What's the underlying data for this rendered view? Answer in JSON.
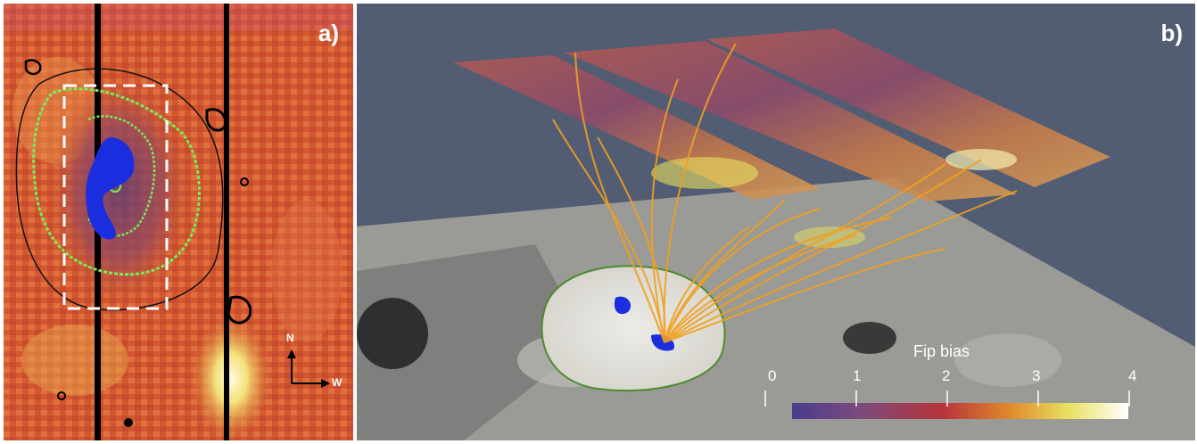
{
  "panel_a": {
    "label": "a)",
    "compass": {
      "north": "N",
      "west": "W"
    }
  },
  "panel_b": {
    "label": "b)",
    "colorbar": {
      "title": "Fip bias",
      "ticks": [
        "0",
        "1",
        "2",
        "3",
        "4"
      ],
      "range": [
        0,
        4
      ],
      "colors": [
        "#4b3c8c",
        "#7a4a7e",
        "#b8343a",
        "#e08a2e",
        "#e8e060",
        "#ffffff"
      ]
    }
  },
  "colors": {
    "contour_green": "#7ee85a",
    "rope_blue": "#1a2ee0",
    "field_lines": "#f0a020",
    "background_plane": "#525c72"
  }
}
